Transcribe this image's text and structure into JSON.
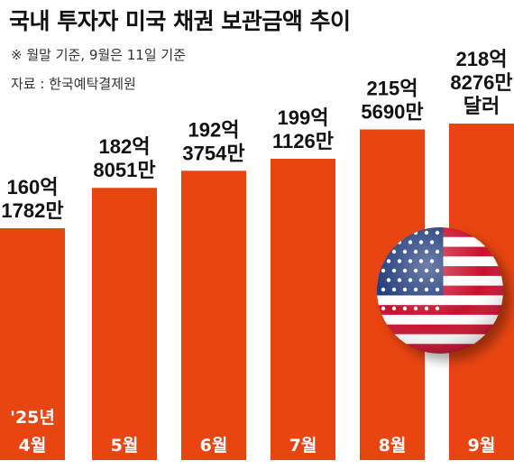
{
  "header": {
    "title": "국내 투자자 미국 채권 보관금액 추이",
    "note": "※ 월말 기준, 9월은 11일 기준",
    "source": "자료 : 한국예탁결제원"
  },
  "colors": {
    "bar": "#e84512",
    "background": "#ffffff",
    "flag_red": "#c8102e",
    "flag_blue": "#1f3a7a"
  },
  "chart_data": {
    "type": "bar",
    "title": "국내 투자자 미국 채권 보관금액 추이",
    "categories": [
      "'25년\n4월",
      "5월",
      "6월",
      "7월",
      "8월",
      "9월"
    ],
    "values": [
      16017.82,
      18280.51,
      19237.54,
      19911.26,
      21556.9,
      21882.76
    ],
    "value_labels": [
      "160억\n1782만",
      "182억\n8051만",
      "192억\n3754만",
      "199억\n1126만",
      "215억\n5690만",
      "218억\n8276만\n달러"
    ],
    "unit": "만 달러",
    "legend": "none",
    "grid": false,
    "icon": "us-flag-icon"
  }
}
